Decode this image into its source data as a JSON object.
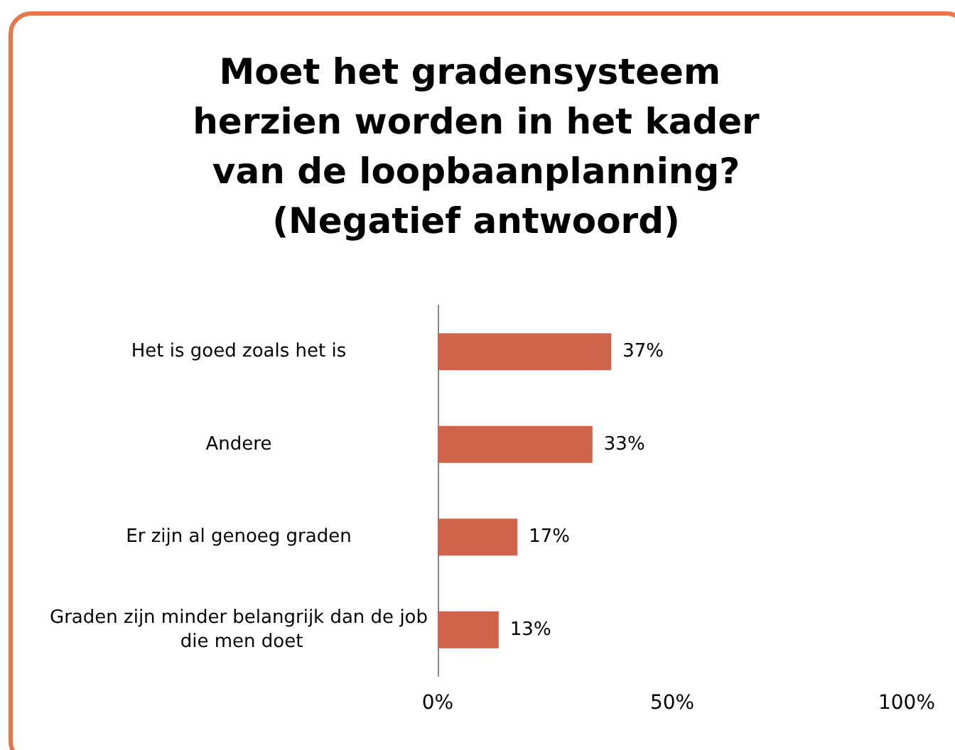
{
  "chart_data": {
    "type": "bar",
    "orientation": "horizontal",
    "title": "Moet het gradensysteem herzien worden in het kader van de loopbaanplanning? (Negatief antwoord)",
    "categories": [
      "Het is goed zoals het is",
      "Andere",
      "Er zijn al genoeg graden",
      "Graden zijn minder belangrijk dan de job die men doet"
    ],
    "values": [
      37,
      33,
      17,
      13
    ],
    "color": "#d0644a",
    "value_labels": [
      "37%",
      "33%",
      "17%",
      "13%"
    ],
    "xlim": [
      0,
      100
    ],
    "xticks": [
      {
        "value": 0,
        "label": "0%"
      },
      {
        "value": 50,
        "label": "50%"
      },
      {
        "value": 100,
        "label": "100%"
      }
    ]
  }
}
